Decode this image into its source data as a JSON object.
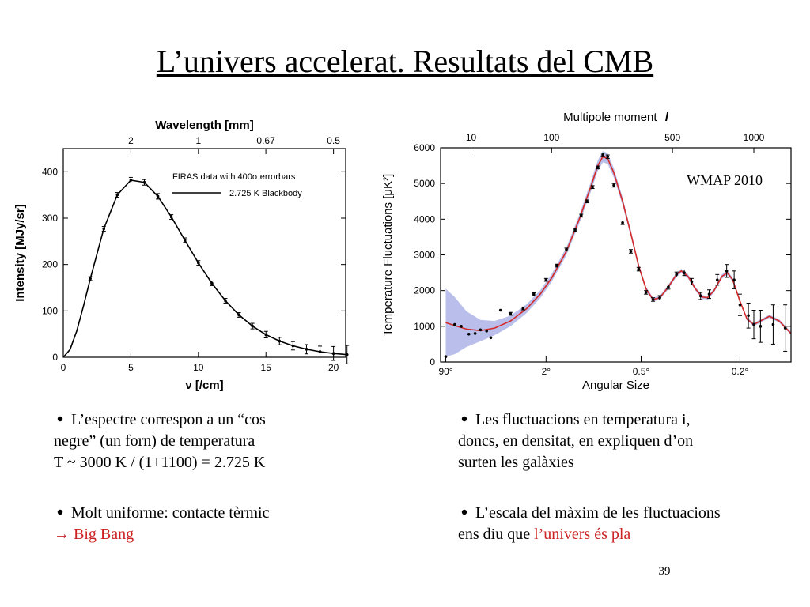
{
  "title": "L’univers accelerat. Resultats del CMB",
  "page_number": 39,
  "chart_data": [
    {
      "type": "line",
      "xlabel": "ν [/cm]",
      "ylabel": "Intensity [MJy/sr]",
      "x2label": "Wavelength [mm]",
      "xaxis": "bottom",
      "xlim": [
        0,
        20.9
      ],
      "xticks": [
        0,
        5,
        10,
        15,
        20
      ],
      "ylim": [
        0,
        450
      ],
      "yticks": [
        0,
        100,
        200,
        300,
        400
      ],
      "x2scale": {
        "type": "reciprocal",
        "factor": 10
      },
      "x2ticks": [
        2,
        1,
        {
          "value": 0.667,
          "label": "0.67"
        },
        0.5
      ],
      "legend": "upper right",
      "series": [
        {
          "name": "FIRAS data with 400σ errorbars",
          "color": "#000000",
          "style": "errorbar",
          "x": [
            2,
            3,
            4,
            5,
            6,
            7,
            8,
            9,
            10,
            11,
            12,
            13,
            14,
            15,
            16,
            17,
            18,
            19,
            20,
            21
          ],
          "values": [
            169.6,
            277.0,
            350.2,
            381.9,
            377.2,
            347.0,
            302.4,
            252.4,
            203.4,
            159.4,
            121.9,
            91.3,
            67.2,
            48.8,
            34.9,
            24.7,
            17.3,
            12.0,
            8.2,
            5.6
          ],
          "errors": [
            4,
            5,
            5,
            6,
            6,
            6,
            5,
            5,
            5,
            5,
            5,
            5,
            6,
            7,
            8,
            9,
            10,
            12,
            15,
            20
          ]
        },
        {
          "name": "2.725 K Blackbody",
          "color": "#000000",
          "style": "line",
          "x": [
            0,
            0.5,
            1,
            1.5,
            2,
            3,
            4,
            5,
            6,
            7,
            8,
            9,
            10,
            11,
            12,
            13,
            14,
            15,
            16,
            17,
            18,
            19,
            20,
            21
          ],
          "values": [
            0,
            16.5,
            57.1,
            111,
            169.6,
            277.0,
            350.2,
            381.9,
            377.2,
            347.0,
            302.4,
            252.4,
            203.4,
            159.4,
            121.9,
            91.3,
            67.2,
            48.8,
            34.9,
            24.7,
            17.3,
            12.0,
            8.2,
            5.6
          ]
        }
      ]
    },
    {
      "type": "line",
      "xlabel": "Multipole moment",
      "xlabel_symbol": "l",
      "ylabel": "Temperature Fluctuations [μK²]",
      "x2label": "Angular Size",
      "annotation": "WMAP 2010",
      "xaxis": "top",
      "xscale": {
        "type": "power",
        "exponent": 0.4
      },
      "xlim": [
        1.2,
        1300
      ],
      "xticks": [
        10,
        100,
        500,
        1000
      ],
      "ylim": [
        0,
        6000
      ],
      "yticks": [
        0,
        1000,
        2000,
        3000,
        4000,
        5000,
        6000
      ],
      "x2scale": {
        "type": "reciprocal",
        "factor": 180
      },
      "x2ticks": [
        {
          "value": 90,
          "label": "90°"
        },
        {
          "value": 2,
          "label": "2°"
        },
        {
          "value": 0.5,
          "label": "0.5°"
        },
        {
          "value": 0.2,
          "label": "0.2°"
        }
      ],
      "series": [
        {
          "color": "#d42a2a",
          "band_color": "#b9bfea",
          "style": "line",
          "x": [
            2,
            4,
            8,
            15,
            25,
            40,
            60,
            80,
            100,
            130,
            160,
            190,
            210,
            225,
            240,
            260,
            290,
            320,
            350,
            380,
            410,
            440,
            480,
            520,
            545,
            580,
            620,
            660,
            690,
            730,
            780,
            815,
            850,
            900,
            950,
            1000,
            1050,
            1120,
            1200,
            1300
          ],
          "values": [
            1100,
            1020,
            920,
            880,
            950,
            1150,
            1500,
            1900,
            2350,
            3100,
            4000,
            4900,
            5500,
            5750,
            5700,
            5300,
            4500,
            3600,
            2700,
            2050,
            1750,
            1800,
            2100,
            2450,
            2550,
            2400,
            2050,
            1820,
            1800,
            2000,
            2400,
            2500,
            2300,
            1700,
            1200,
            1050,
            1150,
            1280,
            1150,
            800
          ],
          "errors": [
            950,
            800,
            500,
            300,
            200,
            150,
            120,
            110,
            110,
            110,
            120,
            140,
            150,
            160,
            150,
            130,
            110,
            90,
            70,
            60,
            55,
            55,
            60,
            60,
            60,
            60,
            55,
            50,
            50,
            55,
            60,
            60,
            55,
            50,
            45,
            45,
            45,
            45,
            45,
            45
          ]
        },
        {
          "color": "#000000",
          "style": "errorbar",
          "x": [
            2,
            4,
            6,
            9,
            12,
            15,
            19,
            22,
            30,
            40,
            55,
            70,
            90,
            110,
            130,
            150,
            165,
            180,
            195,
            210,
            225,
            240,
            260,
            290,
            320,
            350,
            380,
            410,
            440,
            480,
            520,
            560,
            600,
            650,
            700,
            750,
            810,
            860,
            900,
            960,
            1000,
            1050,
            1150,
            1250
          ],
          "values": [
            150,
            1050,
            1000,
            780,
            800,
            900,
            870,
            680,
            1450,
            1350,
            1500,
            1900,
            2300,
            2700,
            3150,
            3700,
            4100,
            4500,
            4900,
            5450,
            5800,
            5750,
            4950,
            3900,
            3100,
            2600,
            1950,
            1750,
            1800,
            2100,
            2450,
            2500,
            2250,
            1850,
            1900,
            2300,
            2550,
            2300,
            1600,
            1300,
            1050,
            1000,
            1050,
            950
          ],
          "errors": [
            0,
            0,
            0,
            0,
            0,
            0,
            0,
            0,
            0,
            40,
            40,
            40,
            40,
            40,
            40,
            40,
            40,
            40,
            40,
            40,
            50,
            50,
            50,
            50,
            50,
            50,
            50,
            50,
            60,
            60,
            70,
            80,
            90,
            100,
            120,
            150,
            180,
            250,
            300,
            350,
            400,
            450,
            550,
            650
          ]
        }
      ]
    }
  ],
  "columns": [
    {
      "bullets": [
        {
          "lines": [
            [
              {
                "text": "L’espectre correspon a un “cos"
              }
            ],
            [
              {
                "text": "negre” (un forn) de temperatura"
              }
            ],
            [
              {
                "text": "T ~ 3000 K / (1+1100) = 2.725 K"
              }
            ]
          ]
        },
        {
          "lines": [
            [
              {
                "text": "Molt uniforme: contacte tèrmic"
              }
            ],
            [
              {
                "text": "→ Big Bang",
                "color": "#cc2222"
              }
            ]
          ]
        }
      ]
    },
    {
      "bullets": [
        {
          "lines": [
            [
              {
                "text": "Les fluctuacions en temperatura i,"
              }
            ],
            [
              {
                "text": "doncs, en densitat, en expliquen d’on"
              }
            ],
            [
              {
                "text": "surten les galàxies"
              }
            ]
          ]
        },
        {
          "lines": [
            [
              {
                "text": "L’escala del màxim de les fluctuacions"
              }
            ],
            [
              {
                "text": "ens diu que "
              },
              {
                "text": "l’univers és pla",
                "color": "#cc2222"
              }
            ]
          ]
        }
      ]
    }
  ]
}
